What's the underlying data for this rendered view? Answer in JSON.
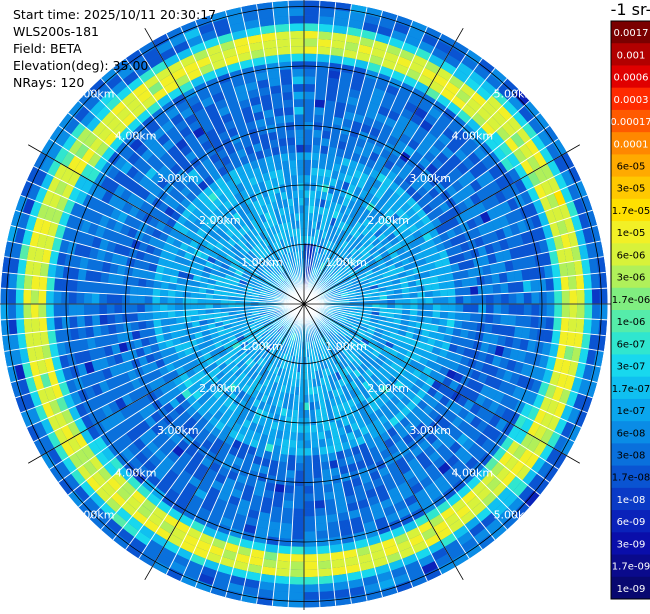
{
  "header": {
    "lines": [
      "Start time: 2025/10/11 20:30:17",
      "WLS200s-181",
      "Field: BETA",
      "Elevation(deg): 35.00",
      "NRays: 120"
    ]
  },
  "colorbar": {
    "title": "-1 sr-",
    "ticks": [
      "0.0017",
      "0.001",
      "0.0006",
      "0.0003",
      "0.00017",
      "0.0001",
      "6e-05",
      "3e-05",
      "1.7e-05",
      "1e-05",
      "6e-06",
      "3e-06",
      "1.7e-06",
      "1e-06",
      "6e-07",
      "3e-07",
      "1.7e-07",
      "1e-07",
      "6e-08",
      "3e-08",
      "1.7e-08",
      "1e-08",
      "6e-09",
      "3e-09",
      "1.7e-09",
      "1e-09"
    ],
    "colors": [
      "#7a0000",
      "#b20000",
      "#e00000",
      "#ff2a00",
      "#ff5a00",
      "#ff8800",
      "#ffaa00",
      "#ffc800",
      "#ffe000",
      "#f2f026",
      "#d8f23a",
      "#b0f05a",
      "#80ee80",
      "#55ecaa",
      "#30e6cf",
      "#18d8ee",
      "#10c0f0",
      "#0aa6ee",
      "#0a8ce6",
      "#0a70dc",
      "#0a54d2",
      "#0a3ac6",
      "#0a22ba",
      "#0a0eaa",
      "#0a0a8c",
      "#080870"
    ]
  },
  "chart_data": {
    "type": "heatmap",
    "projection": "polar (PPI)",
    "field": "BETA",
    "n_rays": 120,
    "range_rings_km": [
      1,
      2,
      3,
      4,
      5
    ],
    "ring_labels": [
      "1.00km",
      "2.00km",
      "3.00km",
      "4.00km",
      "5.00km"
    ],
    "max_range_km": 5.1,
    "azimuth_spokes_deg": [
      0,
      30,
      60,
      90,
      120,
      150,
      180,
      210,
      240,
      270,
      300,
      330
    ],
    "colorbar_min": "1e-09",
    "colorbar_max": "0.0017",
    "background_level": "3e-08",
    "features": [
      {
        "name": "aerosol-ring",
        "range_km": [
          4.3,
          4.6
        ],
        "level": "1.7e-05"
      },
      {
        "name": "inner-region",
        "range_km": [
          0.2,
          2.6
        ],
        "level": "1.7e-07"
      },
      {
        "name": "near-field-spike",
        "azimuth_deg": [
          0,
          12
        ],
        "range_km": [
          0.0,
          1.0
        ],
        "level": "1e-08"
      }
    ]
  }
}
